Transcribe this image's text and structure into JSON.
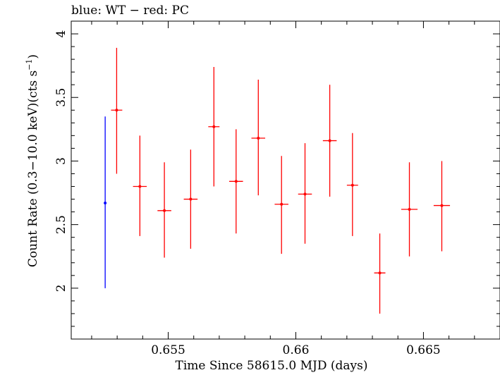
{
  "chart_data": {
    "type": "scatter",
    "title": "blue: WT − red: PC",
    "xlabel": "Time Since 58615.0 MJD (days)",
    "ylabel": "Count Rate (0.3−10.0 keV)(cts s",
    "ylabel_sup": "−1",
    "ylabel_tail": ")",
    "xlim": [
      0.6512,
      0.668
    ],
    "ylim": [
      1.6,
      4.1
    ],
    "xticks": [
      {
        "value": 0.655,
        "label": "0.655"
      },
      {
        "value": 0.66,
        "label": "0.66"
      },
      {
        "value": 0.665,
        "label": "0.665"
      }
    ],
    "yticks": [
      {
        "value": 2,
        "label": "2"
      },
      {
        "value": 2.5,
        "label": "2.5"
      },
      {
        "value": 3,
        "label": "3"
      },
      {
        "value": 3.5,
        "label": "3.5"
      },
      {
        "value": 4,
        "label": "4"
      }
    ],
    "series": [
      {
        "color": "#0000ff",
        "points": [
          {
            "x": 0.65253,
            "y": 2.67,
            "xerr": 0.0,
            "ylo": 2.0,
            "yhi": 3.35
          }
        ]
      },
      {
        "color": "#ff0000",
        "points": [
          {
            "x": 0.65298,
            "y": 3.4,
            "xerr": 0.00022,
            "ylo": 2.9,
            "yhi": 3.89
          },
          {
            "x": 0.65389,
            "y": 2.8,
            "xerr": 0.00027,
            "ylo": 2.41,
            "yhi": 3.2
          },
          {
            "x": 0.65485,
            "y": 2.61,
            "xerr": 0.00027,
            "ylo": 2.24,
            "yhi": 2.99
          },
          {
            "x": 0.65588,
            "y": 2.7,
            "xerr": 0.00027,
            "ylo": 2.31,
            "yhi": 3.09
          },
          {
            "x": 0.65679,
            "y": 3.27,
            "xerr": 0.00022,
            "ylo": 2.8,
            "yhi": 3.74
          },
          {
            "x": 0.65766,
            "y": 2.84,
            "xerr": 0.00027,
            "ylo": 2.43,
            "yhi": 3.25
          },
          {
            "x": 0.65853,
            "y": 3.18,
            "xerr": 0.00027,
            "ylo": 2.73,
            "yhi": 3.64
          },
          {
            "x": 0.65944,
            "y": 2.66,
            "xerr": 0.00027,
            "ylo": 2.27,
            "yhi": 3.04
          },
          {
            "x": 0.66036,
            "y": 2.74,
            "xerr": 0.00027,
            "ylo": 2.35,
            "yhi": 3.14
          },
          {
            "x": 0.66133,
            "y": 3.16,
            "xerr": 0.00027,
            "ylo": 2.72,
            "yhi": 3.6
          },
          {
            "x": 0.66222,
            "y": 2.81,
            "xerr": 0.00022,
            "ylo": 2.41,
            "yhi": 3.22
          },
          {
            "x": 0.66329,
            "y": 2.12,
            "xerr": 0.00022,
            "ylo": 1.8,
            "yhi": 2.43
          },
          {
            "x": 0.66445,
            "y": 2.62,
            "xerr": 0.00032,
            "ylo": 2.25,
            "yhi": 2.99
          },
          {
            "x": 0.66572,
            "y": 2.65,
            "xerr": 0.00032,
            "ylo": 2.29,
            "yhi": 3.0
          }
        ]
      }
    ],
    "grid": false,
    "legend": "none"
  }
}
